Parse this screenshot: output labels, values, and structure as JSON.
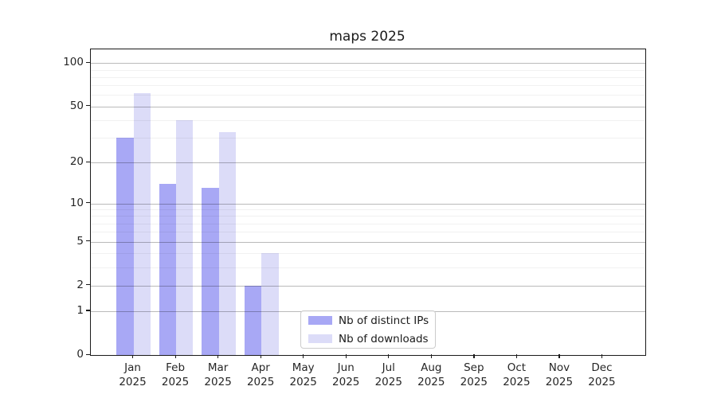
{
  "chart_data": {
    "type": "bar",
    "title": "maps 2025",
    "categories": [
      "Jan",
      "Feb",
      "Mar",
      "Apr",
      "May",
      "Jun",
      "Jul",
      "Aug",
      "Sep",
      "Oct",
      "Nov",
      "Dec"
    ],
    "x_year_label": "2025",
    "series": [
      {
        "name": "Nb of distinct IPs",
        "color": "#a8a8f5",
        "values": [
          30,
          14,
          13,
          2,
          0,
          0,
          0,
          0,
          0,
          0,
          0,
          0
        ]
      },
      {
        "name": "Nb of downloads",
        "color": "#dcdcf8",
        "values": [
          62,
          40,
          33,
          4,
          0,
          0,
          0,
          0,
          0,
          0,
          0,
          0
        ]
      }
    ],
    "y_axis": {
      "scale": "log10(value+1)",
      "major_ticks": [
        0,
        1,
        2,
        5,
        10,
        20,
        50,
        100
      ],
      "minor_gridlines": [
        3,
        4,
        6,
        7,
        8,
        9,
        30,
        40,
        60,
        70,
        80,
        90
      ],
      "ylim": [
        0,
        125
      ]
    },
    "grid": "on",
    "legend": {
      "position": "lower center"
    },
    "colors": {
      "axis": "#1a1a1a",
      "tick_text": "#262626",
      "major_grid": "#bababa",
      "minor_grid": "#ededed"
    }
  }
}
